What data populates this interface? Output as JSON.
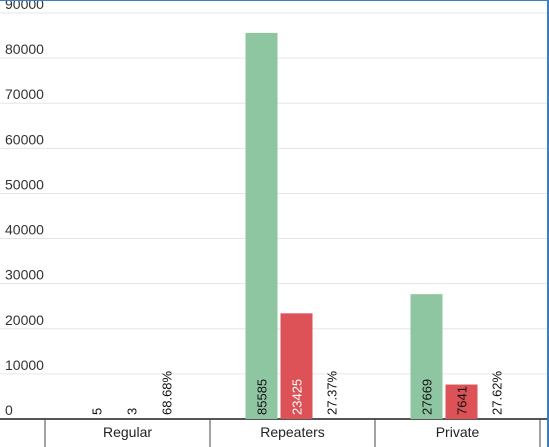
{
  "chart_data": {
    "type": "bar",
    "categories": [
      "Regular",
      "Repeaters",
      "Private"
    ],
    "series": [
      {
        "values": [
          5,
          85585,
          27669
        ],
        "color": "#8fc6a2",
        "labels": [
          "5",
          "85585",
          "27669"
        ]
      },
      {
        "values": [
          3,
          23425,
          7641
        ],
        "color": "#dc5257",
        "labels": [
          "3",
          "23425",
          "7641"
        ]
      },
      {
        "labels": [
          "68.68%",
          "27.37%",
          "27.62%"
        ]
      }
    ],
    "ylim": [
      0,
      90000
    ],
    "yticks": [
      "0",
      "10000",
      "20000",
      "30000",
      "40000",
      "50000",
      "60000",
      "70000",
      "80000",
      "90000"
    ],
    "grid": true,
    "legend": false,
    "title": "",
    "xlabel": "",
    "ylabel": ""
  }
}
